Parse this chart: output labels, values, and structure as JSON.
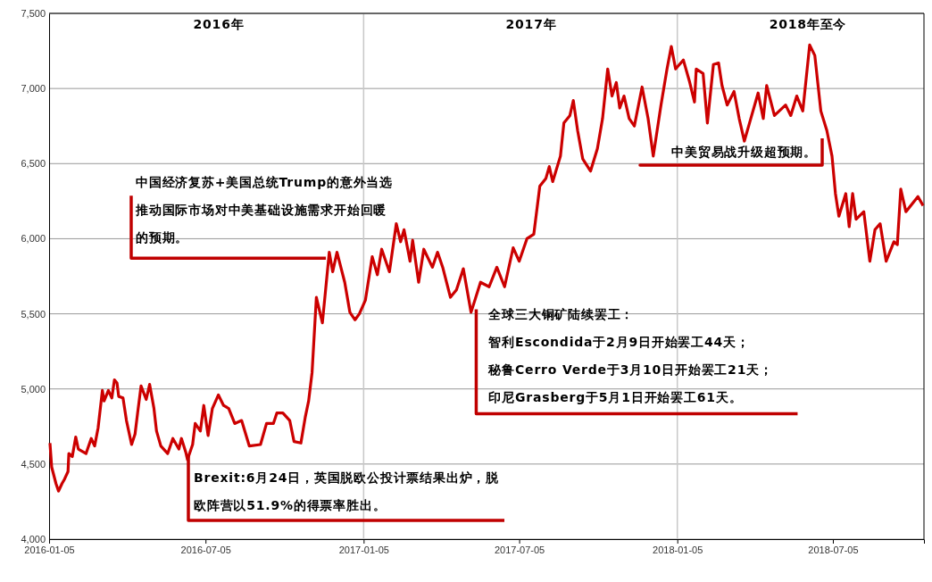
{
  "chart_data": {
    "type": "line",
    "x": [
      "2016-01-06",
      "2016-01-08",
      "2016-01-13",
      "2016-01-16",
      "2016-01-20",
      "2016-01-23",
      "2016-01-27",
      "2016-01-28",
      "2016-02-01",
      "2016-02-05",
      "2016-02-08",
      "2016-02-17",
      "2016-02-23",
      "2016-02-27",
      "2016-03-02",
      "2016-03-07",
      "2016-03-09",
      "2016-03-14",
      "2016-03-18",
      "2016-03-21",
      "2016-03-24",
      "2016-03-26",
      "2016-03-31",
      "2016-04-04",
      "2016-04-10",
      "2016-04-14",
      "2016-04-17",
      "2016-04-21",
      "2016-04-27",
      "2016-05-01",
      "2016-05-06",
      "2016-05-09",
      "2016-05-14",
      "2016-05-22",
      "2016-05-28",
      "2016-06-04",
      "2016-06-07",
      "2016-06-12",
      "2016-06-14",
      "2016-06-20",
      "2016-06-23",
      "2016-06-29",
      "2016-07-03",
      "2016-07-08",
      "2016-07-13",
      "2016-07-20",
      "2016-07-26",
      "2016-08-01",
      "2016-08-08",
      "2016-08-16",
      "2016-08-25",
      "2016-09-07",
      "2016-09-14",
      "2016-09-22",
      "2016-09-26",
      "2016-10-03",
      "2016-10-11",
      "2016-10-16",
      "2016-10-24",
      "2016-10-29",
      "2016-11-02",
      "2016-11-06",
      "2016-11-11",
      "2016-11-18",
      "2016-11-26",
      "2016-11-30",
      "2016-12-05",
      "2016-12-14",
      "2016-12-20",
      "2016-12-26",
      "2016-12-31",
      "2017-01-07",
      "2017-01-15",
      "2017-01-21",
      "2017-01-26",
      "2017-02-04",
      "2017-02-12",
      "2017-02-17",
      "2017-02-21",
      "2017-02-28",
      "2017-03-03",
      "2017-03-10",
      "2017-03-16",
      "2017-03-26",
      "2017-04-01",
      "2017-04-07",
      "2017-04-16",
      "2017-04-23",
      "2017-05-01",
      "2017-05-10",
      "2017-05-21",
      "2017-05-31",
      "2017-06-09",
      "2017-06-18",
      "2017-06-28",
      "2017-07-05",
      "2017-07-14",
      "2017-07-22",
      "2017-07-29",
      "2017-08-05",
      "2017-08-09",
      "2017-08-13",
      "2017-08-22",
      "2017-08-26",
      "2017-09-02",
      "2017-09-06",
      "2017-09-11",
      "2017-09-17",
      "2017-09-26",
      "2017-10-04",
      "2017-10-10",
      "2017-10-16",
      "2017-10-21",
      "2017-10-26",
      "2017-10-30",
      "2017-11-04",
      "2017-11-10",
      "2017-11-16",
      "2017-11-25",
      "2017-12-02",
      "2017-12-08",
      "2017-12-17",
      "2017-12-24",
      "2017-12-29",
      "2018-01-03",
      "2018-01-12",
      "2018-01-19",
      "2018-01-25",
      "2018-01-27",
      "2018-02-04",
      "2018-02-09",
      "2018-02-16",
      "2018-02-22",
      "2018-02-26",
      "2018-03-04",
      "2018-03-12",
      "2018-03-18",
      "2018-03-24",
      "2018-03-30",
      "2018-04-09",
      "2018-04-15",
      "2018-04-19",
      "2018-04-28",
      "2018-05-11",
      "2018-05-17",
      "2018-05-24",
      "2018-05-31",
      "2018-06-08",
      "2018-06-14",
      "2018-06-21",
      "2018-06-28",
      "2018-07-04",
      "2018-07-08",
      "2018-07-12",
      "2018-07-20",
      "2018-07-24",
      "2018-07-28",
      "2018-08-01",
      "2018-08-10",
      "2018-08-17",
      "2018-08-23",
      "2018-08-29",
      "2018-09-05",
      "2018-09-14",
      "2018-09-18",
      "2018-09-22",
      "2018-09-28",
      "2018-10-12",
      "2018-10-18"
    ],
    "series": [
      {
        "color": "#cc0000",
        "values": [
          4640,
          4480,
          4370,
          4320,
          4370,
          4400,
          4450,
          4570,
          4550,
          4680,
          4600,
          4570,
          4670,
          4620,
          4740,
          4990,
          4920,
          4990,
          4940,
          5060,
          5040,
          4950,
          4940,
          4790,
          4630,
          4700,
          4840,
          5020,
          4930,
          5030,
          4870,
          4720,
          4620,
          4570,
          4670,
          4600,
          4670,
          4580,
          4530,
          4630,
          4770,
          4720,
          4890,
          4690,
          4870,
          4960,
          4890,
          4870,
          4770,
          4790,
          4620,
          4630,
          4770,
          4770,
          4840,
          4840,
          4790,
          4650,
          4640,
          4810,
          4920,
          5110,
          5610,
          5440,
          5910,
          5780,
          5910,
          5710,
          5510,
          5460,
          5500,
          5590,
          5880,
          5760,
          5930,
          5780,
          6100,
          5980,
          6060,
          5850,
          5990,
          5710,
          5930,
          5810,
          5910,
          5810,
          5610,
          5660,
          5800,
          5510,
          5710,
          5680,
          5810,
          5680,
          5940,
          5850,
          6000,
          6030,
          6350,
          6400,
          6480,
          6380,
          6550,
          6770,
          6820,
          6920,
          6720,
          6530,
          6450,
          6600,
          6800,
          7130,
          6950,
          7040,
          6870,
          6950,
          6800,
          6750,
          7010,
          6800,
          6550,
          6890,
          7130,
          7280,
          7130,
          7190,
          7050,
          6910,
          7130,
          7100,
          6770,
          7160,
          7170,
          7020,
          6890,
          6980,
          6800,
          6650,
          6770,
          6970,
          6800,
          7020,
          6820,
          6890,
          6820,
          6950,
          6850,
          7290,
          7220,
          6850,
          6720,
          6550,
          6300,
          6150,
          6300,
          6080,
          6300,
          6130,
          6180,
          5850,
          6060,
          6100,
          5850,
          5980,
          5960,
          6330,
          6180,
          6280,
          6220
        ]
      }
    ],
    "xlim": [
      "2016-01-05",
      "2018-10-19"
    ],
    "xticks": [
      "2016-01-05",
      "2016-07-05",
      "2017-01-05",
      "2017-07-05",
      "2018-01-05",
      "2018-07-05"
    ],
    "ylim": [
      4000,
      7500
    ],
    "yticks": [
      {
        "value": 4000,
        "label": "4,000"
      },
      {
        "value": 4500,
        "label": "4,500"
      },
      {
        "value": 5000,
        "label": "5,000"
      },
      {
        "value": 5500,
        "label": "5,500"
      },
      {
        "value": 6000,
        "label": "6,000"
      },
      {
        "value": 6500,
        "label": "6,500"
      },
      {
        "value": 7000,
        "label": "7,000"
      },
      {
        "value": 7500,
        "label": "7,500"
      }
    ],
    "grid": "y",
    "marker": "none",
    "line_style": "solid",
    "ref_lines": [
      {
        "axis": "x",
        "value": "2017-01-05",
        "color": "#c8c8c8"
      },
      {
        "axis": "x",
        "value": "2018-01-05",
        "color": "#c8c8c8"
      }
    ],
    "annotations": [
      {
        "text": "中国经济复苏+美国总统Trump的意外当选推动国际市场对中美基础设施需求开始回暖的预期。",
        "x": "2016-11-22",
        "y": 5870
      },
      "Brexit:6月24日，英国脱欧公投计票结果出炉，脱欧阵营以51.9%的得票率胜出。",
      {
        "text": "全球三大铜矿陆续罢工：智利Escondida于2月9日开始罢工44天；秘鲁Cerro Verde于3月10日开始罢工21天；印尼Grasberg于5月1日开始罢工61天。",
        "x": "2017-05-16",
        "y": 5530
      },
      "中美贸易战升级超预期。",
      "2016年",
      "2017年",
      "2018年至今"
    ]
  }
}
